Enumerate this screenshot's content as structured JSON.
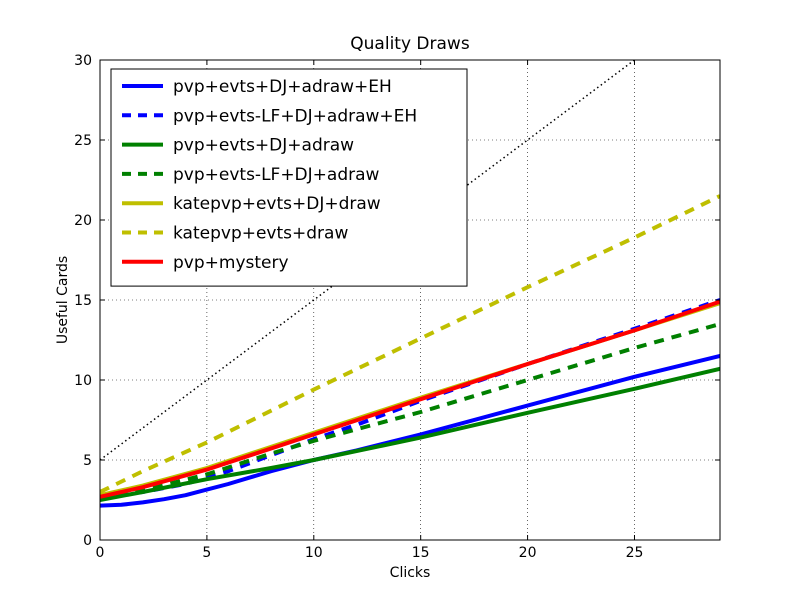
{
  "chart_data": {
    "type": "line",
    "title": "Quality Draws",
    "xlabel": "Clicks",
    "ylabel": "Useful Cards",
    "xlim": [
      0,
      29
    ],
    "ylim": [
      0,
      30
    ],
    "xticks": [
      0,
      5,
      10,
      15,
      20,
      25
    ],
    "yticks": [
      0,
      5,
      10,
      15,
      20,
      25,
      30
    ],
    "grid": true,
    "legend_position": "top-left",
    "reference_line": {
      "style": "dotted",
      "color": "#000000",
      "x": [
        0,
        25
      ],
      "y": [
        5,
        30
      ]
    },
    "series": [
      {
        "name": "pvp+evts+DJ+adraw+EH",
        "color": "#0000ff",
        "dashed": false,
        "x": [
          0,
          1,
          2,
          3,
          4,
          5,
          6,
          7,
          8,
          9,
          10,
          12,
          15,
          20,
          25,
          29
        ],
        "y": [
          2.15,
          2.2,
          2.35,
          2.55,
          2.8,
          3.15,
          3.5,
          3.9,
          4.3,
          4.65,
          5.0,
          5.6,
          6.6,
          8.4,
          10.2,
          11.5
        ]
      },
      {
        "name": "pvp+evts-LF+DJ+adraw+EH",
        "color": "#0000ff",
        "dashed": true,
        "x": [
          0,
          2,
          4,
          6,
          8,
          10,
          12,
          15,
          20,
          25,
          29
        ],
        "y": [
          2.7,
          3.0,
          3.5,
          4.3,
          5.3,
          6.3,
          7.2,
          8.7,
          11.0,
          13.2,
          15.0
        ]
      },
      {
        "name": "pvp+evts+DJ+adraw",
        "color": "#008000",
        "dashed": false,
        "x": [
          0,
          2,
          5,
          8,
          10,
          15,
          20,
          25,
          29
        ],
        "y": [
          2.5,
          3.0,
          3.8,
          4.5,
          5.0,
          6.4,
          7.95,
          9.45,
          10.7
        ]
      },
      {
        "name": "pvp+evts-LF+DJ+adraw",
        "color": "#008000",
        "dashed": true,
        "x": [
          0,
          2,
          5,
          8,
          10,
          15,
          20,
          25,
          29
        ],
        "y": [
          2.6,
          3.1,
          4.1,
          5.4,
          6.2,
          8.0,
          10.0,
          12.0,
          13.5
        ]
      },
      {
        "name": "katepvp+evts+DJ+draw",
        "color": "#bfbf00",
        "dashed": false,
        "x": [
          0,
          2,
          5,
          10,
          15,
          20,
          25,
          29
        ],
        "y": [
          2.8,
          3.4,
          4.5,
          6.7,
          8.9,
          11.0,
          13.1,
          14.8
        ]
      },
      {
        "name": "katepvp+evts+draw",
        "color": "#bfbf00",
        "dashed": true,
        "x": [
          0,
          2,
          5,
          10,
          15,
          20,
          25,
          29
        ],
        "y": [
          3.0,
          4.3,
          6.1,
          9.4,
          12.6,
          15.8,
          18.9,
          21.5
        ]
      },
      {
        "name": "pvp+mystery",
        "color": "#ff0000",
        "dashed": false,
        "x": [
          0,
          2,
          5,
          10,
          15,
          20,
          25,
          29
        ],
        "y": [
          2.7,
          3.3,
          4.4,
          6.6,
          8.8,
          11.0,
          13.1,
          14.9
        ]
      }
    ]
  }
}
